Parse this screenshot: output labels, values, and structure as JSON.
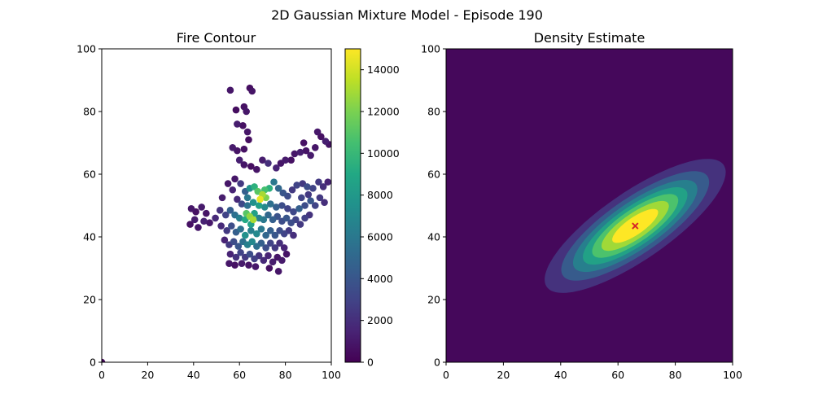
{
  "figure": {
    "suptitle": "2D Gaussian Mixture Model - Episode 190"
  },
  "chart_data": [
    {
      "type": "scatter",
      "title": "Fire Contour",
      "xlabel": "",
      "ylabel": "",
      "xlim": [
        0,
        100
      ],
      "ylim": [
        0,
        100
      ],
      "xticks": [
        0,
        20,
        40,
        60,
        80,
        100
      ],
      "yticks": [
        0,
        20,
        40,
        60,
        80,
        100
      ],
      "colormap": "viridis",
      "colorbar": {
        "range": [
          0,
          15000
        ],
        "ticks": [
          0,
          2000,
          4000,
          6000,
          8000,
          10000,
          12000,
          14000
        ]
      },
      "points": [
        [
          0,
          0,
          300
        ],
        [
          65.5,
          86.5,
          800
        ],
        [
          64.5,
          87.5,
          600
        ],
        [
          56,
          86.8,
          900
        ],
        [
          62,
          81.5,
          700
        ],
        [
          58.5,
          80.5,
          500
        ],
        [
          63,
          80,
          900
        ],
        [
          59,
          76,
          1200
        ],
        [
          61.5,
          75.5,
          700
        ],
        [
          63.5,
          73.5,
          900
        ],
        [
          64,
          71,
          500
        ],
        [
          57,
          68.5,
          1100
        ],
        [
          59,
          67.5,
          800
        ],
        [
          62,
          68,
          700
        ],
        [
          60,
          64.5,
          1300
        ],
        [
          62,
          63,
          900
        ],
        [
          65,
          62.5,
          600
        ],
        [
          67.5,
          61.5,
          800
        ],
        [
          70,
          64.5,
          1200
        ],
        [
          72.5,
          63.5,
          2000
        ],
        [
          76,
          62,
          1500
        ],
        [
          78,
          63.5,
          900
        ],
        [
          80,
          64.5,
          1100
        ],
        [
          82.5,
          64.5,
          700
        ],
        [
          84,
          66.5,
          900
        ],
        [
          86.5,
          67,
          1200
        ],
        [
          89,
          67.5,
          800
        ],
        [
          91,
          66,
          1100
        ],
        [
          93,
          68.5,
          900
        ],
        [
          95.5,
          72,
          700
        ],
        [
          97.5,
          70.5,
          1300
        ],
        [
          99,
          69.5,
          800
        ],
        [
          94,
          73.5,
          1000
        ],
        [
          88,
          70,
          700
        ],
        [
          52.5,
          52.5,
          1200
        ],
        [
          55,
          57,
          900
        ],
        [
          57,
          55,
          1500
        ],
        [
          58,
          58.5,
          900
        ],
        [
          60.5,
          57,
          2500
        ],
        [
          62.5,
          54.5,
          4500
        ],
        [
          64.5,
          55.5,
          7500
        ],
        [
          66.5,
          56,
          9500
        ],
        [
          68,
          54.5,
          11000
        ],
        [
          70,
          53.5,
          13000
        ],
        [
          71.5,
          52.5,
          12000
        ],
        [
          73,
          55.5,
          9500
        ],
        [
          75,
          57.5,
          6000
        ],
        [
          77,
          55.5,
          5000
        ],
        [
          79,
          54,
          4000
        ],
        [
          81,
          53,
          3500
        ],
        [
          83,
          55,
          2500
        ],
        [
          85,
          56.5,
          3000
        ],
        [
          87.5,
          57,
          2500
        ],
        [
          89.5,
          56,
          3500
        ],
        [
          92,
          55.5,
          3000
        ],
        [
          94.5,
          57.5,
          2500
        ],
        [
          96.5,
          56,
          2000
        ],
        [
          98.5,
          57.5,
          1500
        ],
        [
          59,
          52,
          1800
        ],
        [
          61,
          50.5,
          3200
        ],
        [
          63.5,
          50,
          5500
        ],
        [
          66,
          51,
          7500
        ],
        [
          68.5,
          50,
          8500
        ],
        [
          71,
          49.5,
          7000
        ],
        [
          73.5,
          50.5,
          5500
        ],
        [
          76,
          49.5,
          4500
        ],
        [
          78.5,
          50,
          3500
        ],
        [
          81,
          49,
          3000
        ],
        [
          83.5,
          48,
          3200
        ],
        [
          86,
          49,
          4500
        ],
        [
          88.5,
          50,
          3500
        ],
        [
          91,
          51.5,
          4000
        ],
        [
          93,
          50,
          3000
        ],
        [
          95,
          52.5,
          2500
        ],
        [
          97,
          51,
          2000
        ],
        [
          90,
          53.5,
          2500
        ],
        [
          87,
          52.5,
          3000
        ],
        [
          39,
          49,
          900
        ],
        [
          41,
          48,
          700
        ],
        [
          43.5,
          49.5,
          1100
        ],
        [
          45.5,
          47.5,
          800
        ],
        [
          40.5,
          45.5,
          1200
        ],
        [
          38.5,
          44,
          700
        ],
        [
          42,
          43,
          900
        ],
        [
          44.5,
          45,
          1400
        ],
        [
          47,
          44.5,
          1000
        ],
        [
          49.5,
          46,
          1800
        ],
        [
          51.5,
          48.5,
          2200
        ],
        [
          54,
          47,
          3000
        ],
        [
          56,
          48.5,
          4500
        ],
        [
          58,
          47,
          5500
        ],
        [
          60,
          46,
          6500
        ],
        [
          62.5,
          45.5,
          9000
        ],
        [
          64.5,
          46.5,
          12500
        ],
        [
          66.5,
          47.5,
          8500
        ],
        [
          68.5,
          46,
          6500
        ],
        [
          70.5,
          45.5,
          6000
        ],
        [
          72.5,
          47,
          5000
        ],
        [
          74.5,
          45.5,
          4500
        ],
        [
          76.5,
          46.5,
          3800
        ],
        [
          78.5,
          45,
          3500
        ],
        [
          80.5,
          46,
          4000
        ],
        [
          82.5,
          44.5,
          3500
        ],
        [
          84.5,
          45.5,
          3000
        ],
        [
          86.5,
          44,
          2500
        ],
        [
          88.5,
          46,
          2800
        ],
        [
          90.5,
          47,
          2200
        ],
        [
          52,
          43.5,
          1800
        ],
        [
          54.5,
          42,
          2500
        ],
        [
          56.5,
          43.5,
          3500
        ],
        [
          58.5,
          41.5,
          4500
        ],
        [
          60.5,
          42.5,
          5500
        ],
        [
          62.5,
          40.5,
          7500
        ],
        [
          65,
          42,
          6500
        ],
        [
          67.5,
          41,
          7000
        ],
        [
          69.5,
          42.5,
          6000
        ],
        [
          71.5,
          40.5,
          5000
        ],
        [
          73.5,
          42,
          4500
        ],
        [
          75.5,
          40.5,
          4000
        ],
        [
          77.5,
          42,
          3500
        ],
        [
          79.5,
          41,
          3000
        ],
        [
          81.5,
          42,
          2500
        ],
        [
          83.5,
          40.5,
          2000
        ],
        [
          53.5,
          39,
          1500
        ],
        [
          55.5,
          37.5,
          2500
        ],
        [
          57.5,
          38.5,
          3500
        ],
        [
          59.5,
          37,
          4000
        ],
        [
          61.5,
          38.5,
          5500
        ],
        [
          63.5,
          37.5,
          6500
        ],
        [
          65.5,
          38.5,
          7000
        ],
        [
          67.5,
          37,
          5500
        ],
        [
          69.5,
          38,
          4500
        ],
        [
          71.5,
          36.5,
          3500
        ],
        [
          73.5,
          38,
          3000
        ],
        [
          75.5,
          36.5,
          2500
        ],
        [
          77.5,
          38,
          2000
        ],
        [
          79.5,
          36.5,
          1500
        ],
        [
          56,
          34.5,
          1500
        ],
        [
          58.5,
          33.5,
          2200
        ],
        [
          60.5,
          35,
          3000
        ],
        [
          62.5,
          33.5,
          2500
        ],
        [
          64.5,
          34.5,
          3500
        ],
        [
          66.5,
          33,
          2800
        ],
        [
          68.5,
          34,
          2200
        ],
        [
          70.5,
          32.5,
          1800
        ],
        [
          72.5,
          34,
          1500
        ],
        [
          74.5,
          32,
          1200
        ],
        [
          76.5,
          33.5,
          900
        ],
        [
          78.5,
          32.5,
          1100
        ],
        [
          80.5,
          34.5,
          800
        ],
        [
          55.5,
          31.5,
          900
        ],
        [
          58,
          31,
          700
        ],
        [
          61,
          31.5,
          1100
        ],
        [
          64,
          31,
          800
        ],
        [
          67,
          30.5,
          1000
        ],
        [
          73,
          30,
          700
        ],
        [
          77,
          29,
          900
        ],
        [
          65,
          44,
          8500
        ],
        [
          63.5,
          52.5,
          6000
        ],
        [
          69,
          52,
          14500
        ],
        [
          66,
          45.5,
          13000
        ],
        [
          63,
          47.5,
          11000
        ],
        [
          71,
          55,
          10500
        ]
      ]
    },
    {
      "type": "heatmap",
      "title": "Density Estimate",
      "xlabel": "",
      "ylabel": "",
      "xlim": [
        0,
        100
      ],
      "ylim": [
        0,
        100
      ],
      "xticks": [
        0,
        20,
        40,
        60,
        80,
        100
      ],
      "yticks": [
        0,
        20,
        40,
        60,
        80,
        100
      ],
      "colormap": "viridis",
      "gaussian": {
        "mean": [
          66,
          43.5
        ],
        "cov": [
          [
            240,
            130
          ],
          [
            130,
            110
          ]
        ]
      },
      "contour_levels": 8,
      "mean_marker": {
        "x": 66,
        "y": 43.5,
        "symbol": "x",
        "color": "#d62728"
      }
    }
  ]
}
